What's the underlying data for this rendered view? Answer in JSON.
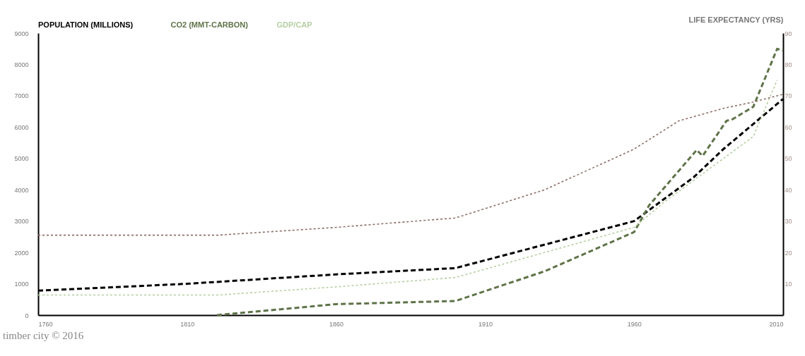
{
  "chart_data": {
    "type": "line",
    "ylabel": null,
    "y2label": "LIFE EXPECTANCY (YRS)",
    "xlim": [
      1760,
      2010
    ],
    "xticks": [
      1760,
      1810,
      1860,
      1910,
      1960,
      2010
    ],
    "ylim": [
      0,
      9000
    ],
    "yticks": [
      0,
      1000,
      2000,
      3000,
      4000,
      5000,
      6000,
      7000,
      8000,
      9000
    ],
    "y2lim": [
      0,
      90
    ],
    "y2ticks": [
      10,
      20,
      30,
      40,
      50,
      60,
      70,
      80,
      90
    ],
    "grid": false,
    "legend": "top left",
    "marker": "none",
    "series": [
      {
        "name": "POPULATION (MILLIONS)",
        "color": "#000000",
        "line_style": "dashed",
        "x": [
          1760,
          1810,
          1860,
          1900,
          1960,
          1970,
          1980,
          1990,
          2000,
          2010
        ],
        "values": [
          780,
          1000,
          1300,
          1500,
          3000,
          3700,
          4400,
          5300,
          6100,
          6900
        ]
      },
      {
        "name": "CO2 (MMT-CARBON)",
        "color": "#5f7348",
        "line_style": "dashed",
        "x": [
          1820,
          1860,
          1900,
          1930,
          1960,
          1965,
          1981,
          1983,
          1991,
          1993,
          2000,
          2008,
          2010
        ],
        "values": [
          0,
          350,
          450,
          1400,
          2650,
          3500,
          5270,
          5080,
          6200,
          6250,
          6650,
          8500,
          8450
        ]
      },
      {
        "name": "GDP/CAP",
        "color": "#b5cfa0",
        "line_style": "dotted",
        "x": [
          1760,
          1820,
          1860,
          1900,
          1960,
          1970,
          1980,
          1990,
          2000,
          2008
        ],
        "values": [
          640,
          640,
          900,
          1200,
          2800,
          3600,
          4300,
          5000,
          5700,
          7500
        ]
      },
      {
        "color": "#8c6e68",
        "line_style": "dotted",
        "axis": "y2",
        "x": [
          1760,
          1820,
          1860,
          1900,
          1930,
          1960,
          1975,
          1990,
          2000,
          2010
        ],
        "values": [
          25.5,
          25.5,
          28,
          31,
          40,
          53,
          62,
          66,
          68,
          70.5
        ]
      }
    ],
    "annotations": [
      "timber city © 2016"
    ]
  }
}
